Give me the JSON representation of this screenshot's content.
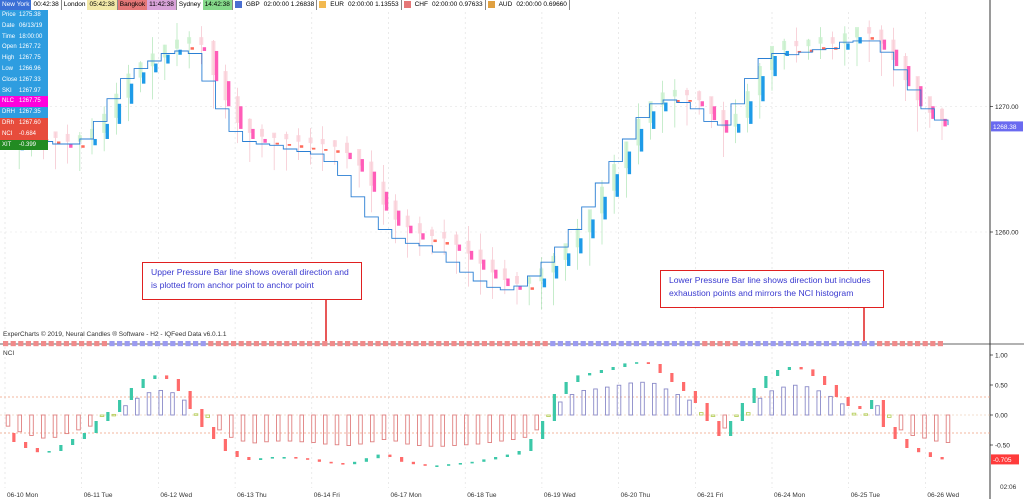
{
  "timezones": [
    {
      "name": "New York",
      "time": "00:42:38",
      "name_bg": "#3b6fd6",
      "time_bg": "#ffffff"
    },
    {
      "name": "London",
      "time": "05:42:38",
      "name_bg": "#ffffff",
      "time_bg": "#f3e9a8"
    },
    {
      "name": "Bangkok",
      "time": "11:42:38",
      "name_bg": "#e57777",
      "time_bg": "#d9a3d9"
    },
    {
      "name": "Sydney",
      "time": "14:42:38",
      "name_bg": "#ffffff",
      "time_bg": "#85d98a"
    }
  ],
  "fx": [
    {
      "name": "GBP",
      "value": "02:00:00 1.26838",
      "swatch": "#4a6fd1"
    },
    {
      "name": "EUR",
      "value": "02:00:00 1.13553",
      "swatch": "#f2b950"
    },
    {
      "name": "CHF",
      "value": "02:00:00 0.97633",
      "swatch": "#e57777"
    },
    {
      "name": "AUD",
      "value": "02:00:00 0.69660",
      "swatch": "#e0a040"
    }
  ],
  "info_panel": [
    {
      "label": "Price",
      "value": "1275.38",
      "bg": "#2e9de0"
    },
    {
      "label": "Date",
      "value": "06/13/19",
      "bg": "#2e9de0"
    },
    {
      "label": "Time",
      "value": "18:00:00",
      "bg": "#2e9de0"
    },
    {
      "label": "Open",
      "value": "1267.72",
      "bg": "#2e9de0"
    },
    {
      "label": "High",
      "value": "1267.75",
      "bg": "#2e9de0"
    },
    {
      "label": "Low",
      "value": "1266.96",
      "bg": "#2e9de0"
    },
    {
      "label": "Close",
      "value": "1267.33",
      "bg": "#2e9de0"
    },
    {
      "label": "SKI",
      "value": "1267.97",
      "bg": "#2e9de0"
    },
    {
      "label": "NLC",
      "value": "1267.75",
      "bg": "#ff00dd"
    },
    {
      "label": "DRH",
      "value": "1267.35",
      "bg": "#2e9de0"
    },
    {
      "label": "DRh",
      "value": "1267.60",
      "bg": "#e74c3c"
    },
    {
      "label": "NCI",
      "value": "-0.684",
      "bg": "#e74c3c"
    },
    {
      "label": "XIT",
      "value": "-0.399",
      "bg": "#228b22"
    }
  ],
  "callouts": {
    "upper": "Upper Pressure Bar line shows overall direction and is plotted from anchor point to anchor point",
    "lower": "Lower Pressure Bar line shows direction but includes exhaustion points and mirrors the NCI histogram"
  },
  "footer": "ExperCharts © 2019, Neural Candles ® Software - H2 - IQFeed Data v6.0.1.1",
  "nci_label": "NCI",
  "price_axis": {
    "ticks": [
      "1270.00",
      "1260.00"
    ],
    "current": "1268.38",
    "current_color": "#6a6af0"
  },
  "nci_axis": {
    "ticks": [
      "1.00",
      "0.50",
      "0.00",
      "-0.50"
    ],
    "current": "-0.705",
    "current_color": "#ff3b3b"
  },
  "date_labels": [
    "06-10 Mon",
    "06-11 Tue",
    "06-12 Wed",
    "06-13 Thu",
    "06-14 Fri",
    "06-17 Mon",
    "06-18 Tue",
    "06-19 Wed",
    "06-20 Thu",
    "06-21 Fri",
    "06-24 Mon",
    "06-25 Tue",
    "06-26 Wed"
  ],
  "date_tail": "02:06",
  "colors": {
    "up": "#1e9be8",
    "down": "#ff5cb8",
    "neutral": "#ff6b5b",
    "hist_pos": "#8a8ac8",
    "hist_neg": "#e08080",
    "hist_small": "#b8d060"
  },
  "chart_data": {
    "type": "candlestick+histogram",
    "price_ylim": [
      1253.0,
      1277.5
    ],
    "price_path": [
      1266.5,
      1267.0,
      1267.4,
      1267.2,
      1267.0,
      1266.7,
      1266.9,
      1267.4,
      1268.6,
      1270.2,
      1271.8,
      1272.7,
      1273.4,
      1274.1,
      1274.5,
      1274.7,
      1274.4,
      1272.0,
      1270.0,
      1268.2,
      1267.4,
      1267.1,
      1267.0,
      1266.9,
      1266.7,
      1266.6,
      1266.5,
      1266.3,
      1265.8,
      1264.8,
      1263.2,
      1261.7,
      1260.5,
      1259.9,
      1259.4,
      1259.2,
      1259.0,
      1258.5,
      1257.8,
      1257.0,
      1256.3,
      1255.7,
      1255.4,
      1255.6,
      1256.3,
      1257.3,
      1258.3,
      1259.5,
      1261.0,
      1262.8,
      1264.6,
      1266.4,
      1268.2,
      1269.6,
      1270.3,
      1270.5,
      1270.4,
      1270.0,
      1268.9,
      1267.9,
      1268.6,
      1270.4,
      1272.4,
      1274.0,
      1274.4,
      1274.3,
      1274.5,
      1274.7,
      1274.5,
      1275.0,
      1275.5,
      1275.3,
      1274.5,
      1273.2,
      1271.6,
      1270.0,
      1269.0,
      1268.4
    ],
    "upper_line": [
      1267.4,
      1267.4,
      1267.2,
      1267.0,
      1267.0,
      1267.4,
      1268.8,
      1270.6,
      1272.2,
      1273.0,
      1273.6,
      1274.2,
      1274.4,
      1274.2,
      1272.0,
      1269.8,
      1268.0,
      1267.2,
      1267.0,
      1266.9,
      1266.6,
      1266.4,
      1266.2,
      1265.6,
      1264.5,
      1262.8,
      1261.2,
      1260.2,
      1259.5,
      1259.1,
      1258.9,
      1258.4,
      1257.6,
      1256.8,
      1256.1,
      1255.6,
      1255.4,
      1255.7,
      1256.5,
      1257.6,
      1258.8,
      1260.2,
      1262.0,
      1263.9,
      1265.6,
      1267.4,
      1269.1,
      1270.2,
      1270.5,
      1270.3,
      1269.8,
      1268.8,
      1268.5,
      1270.2,
      1272.2,
      1273.8,
      1274.2,
      1274.1,
      1274.3,
      1274.5,
      1274.6,
      1275.1,
      1275.2,
      1275.2,
      1274.3,
      1272.9,
      1271.3,
      1269.8,
      1268.9,
      1268.5
    ],
    "nci": [
      -0.3,
      -0.45,
      -0.55,
      -0.62,
      -0.6,
      -0.5,
      -0.4,
      -0.3,
      -0.1,
      0.05,
      0.25,
      0.45,
      0.6,
      0.66,
      0.6,
      0.4,
      0.1,
      -0.2,
      -0.4,
      -0.6,
      -0.7,
      -0.75,
      -0.72,
      -0.7,
      -0.7,
      -0.72,
      -0.74,
      -0.78,
      -0.8,
      -0.82,
      -0.78,
      -0.72,
      -0.66,
      -0.7,
      -0.78,
      -0.82,
      -0.84,
      -0.84,
      -0.82,
      -0.8,
      -0.78,
      -0.74,
      -0.7,
      -0.66,
      -0.6,
      -0.4,
      -0.1,
      0.35,
      0.55,
      0.66,
      0.7,
      0.75,
      0.8,
      0.86,
      0.88,
      0.85,
      0.7,
      0.55,
      0.4,
      0.2,
      -0.1,
      -0.35,
      -0.1,
      0.2,
      0.45,
      0.65,
      0.75,
      0.8,
      0.76,
      0.65,
      0.5,
      0.3,
      0.15,
      0.1,
      0.25,
      -0.2,
      -0.4,
      -0.55,
      -0.62,
      -0.7,
      -0.74
    ]
  }
}
